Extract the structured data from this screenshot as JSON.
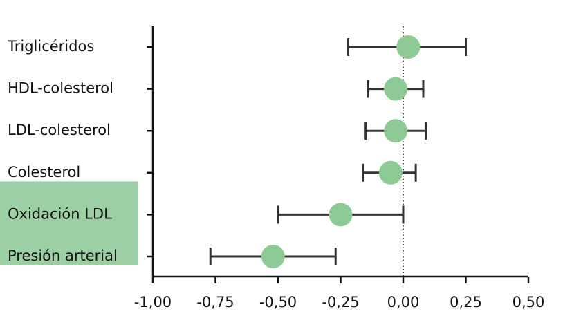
{
  "chart_data": {
    "type": "forest",
    "categories": [
      "Triglicéridos",
      "HDL-colesterol",
      "LDL-colesterol",
      "Colesterol",
      "Oxidación LDL",
      "Presión arterial"
    ],
    "values": [
      0.02,
      -0.03,
      -0.03,
      -0.05,
      -0.25,
      -0.52
    ],
    "lower": [
      -0.22,
      -0.14,
      -0.15,
      -0.16,
      -0.5,
      -0.77
    ],
    "upper": [
      0.25,
      0.08,
      0.09,
      0.05,
      0.0,
      -0.27
    ],
    "color": "#8dca96",
    "error_color": "#333333",
    "highlight": [
      false,
      false,
      false,
      false,
      true,
      true
    ],
    "highlight_color": "#9ccfa3",
    "reference_x": 0,
    "xlim": [
      -1,
      0.5
    ],
    "xticks": [
      {
        "value": -1,
        "label": "-1,00"
      },
      {
        "value": -0.75,
        "label": "-0,75"
      },
      {
        "value": -0.5,
        "label": "-0,50"
      },
      {
        "value": -0.25,
        "label": "-0,25"
      },
      {
        "value": 0,
        "label": "0,00"
      },
      {
        "value": 0.25,
        "label": "0,25"
      },
      {
        "value": 0.5,
        "label": "0,50"
      }
    ]
  }
}
